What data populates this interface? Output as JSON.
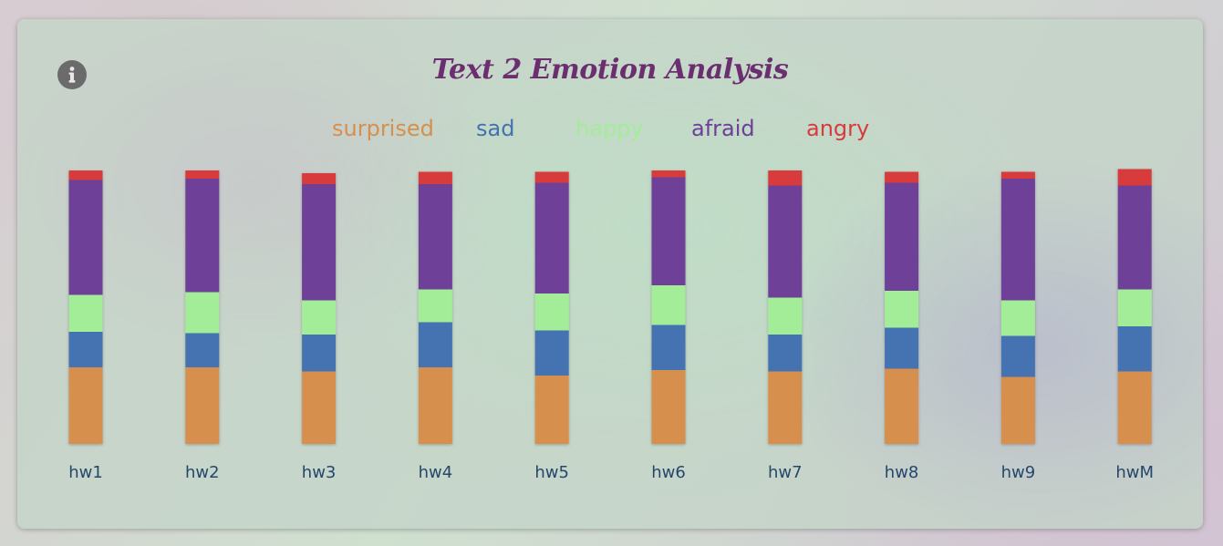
{
  "chart_data": {
    "type": "bar",
    "stacked": true,
    "title": "Text 2 Emotion Analysis",
    "categories": [
      "hw1",
      "hw2",
      "hw3",
      "hw4",
      "hw5",
      "hw6",
      "hw7",
      "hw8",
      "hw9",
      "hwM"
    ],
    "series": [
      {
        "name": "surprised",
        "color": "#d68f4d",
        "values": [
          0.28,
          0.28,
          0.265,
          0.28,
          0.25,
          0.27,
          0.265,
          0.275,
          0.245,
          0.265
        ]
      },
      {
        "name": "sad",
        "color": "#4472b0",
        "values": [
          0.13,
          0.125,
          0.135,
          0.165,
          0.165,
          0.165,
          0.135,
          0.15,
          0.15,
          0.165
        ]
      },
      {
        "name": "happy",
        "color": "#a3ec98",
        "values": [
          0.135,
          0.15,
          0.125,
          0.12,
          0.135,
          0.145,
          0.135,
          0.135,
          0.13,
          0.135
        ]
      },
      {
        "name": "afraid",
        "color": "#6e3f98",
        "values": [
          0.42,
          0.415,
          0.425,
          0.385,
          0.405,
          0.395,
          0.41,
          0.395,
          0.445,
          0.38
        ]
      },
      {
        "name": "angry",
        "color": "#d83b3b",
        "values": [
          0.035,
          0.03,
          0.04,
          0.045,
          0.04,
          0.025,
          0.055,
          0.04,
          0.025,
          0.06
        ]
      }
    ],
    "ylim": [
      0,
      1
    ],
    "legend_position": "top-center",
    "grid": false
  },
  "icons": {
    "info": "info-circle-icon"
  }
}
